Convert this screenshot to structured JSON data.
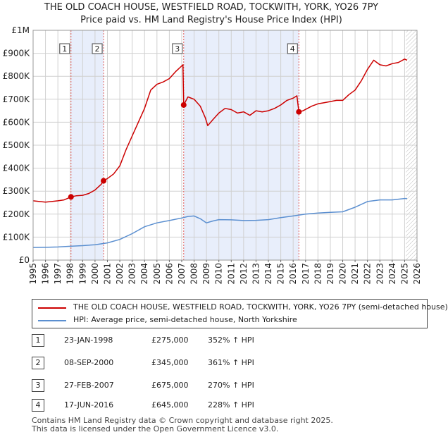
{
  "title_line1": "THE OLD COACH HOUSE, WESTFIELD ROAD, TOCKWITH, YORK, YO26 7PY",
  "title_line2": "Price paid vs. HM Land Registry's House Price Index (HPI)",
  "legend": {
    "property_label": "THE OLD COACH HOUSE, WESTFIELD ROAD, TOCKWITH, YORK, YO26 7PY (semi-detached house)",
    "hpi_label": "HPI: Average price, semi-detached house, North Yorkshire"
  },
  "transactions": [
    {
      "num": "1",
      "date": "23-JAN-1998",
      "price": "£275,000",
      "hpi": "352% ↑ HPI"
    },
    {
      "num": "2",
      "date": "08-SEP-2000",
      "price": "£345,000",
      "hpi": "361% ↑ HPI"
    },
    {
      "num": "3",
      "date": "27-FEB-2007",
      "price": "£675,000",
      "hpi": "270% ↑ HPI"
    },
    {
      "num": "4",
      "date": "17-JUN-2016",
      "price": "£645,000",
      "hpi": "228% ↑ HPI"
    }
  ],
  "footer_line1": "Contains HM Land Registry data © Crown copyright and database right 2025.",
  "footer_line2": "This data is licensed under the Open Government Licence v3.0.",
  "colors": {
    "property": "#cc0000",
    "hpi": "#5b8fd0",
    "band": "#e8eefb",
    "grid": "#d0d0d0",
    "marker_line": "#e06060"
  },
  "chart_data": {
    "type": "line",
    "title": "THE OLD COACH HOUSE, WESTFIELD ROAD, TOCKWITH, YORK, YO26 7PY",
    "subtitle": "Price paid vs. HM Land Registry's House Price Index (HPI)",
    "xlim": [
      1995,
      2026
    ],
    "ylim": [
      0,
      1000000
    ],
    "y_ticks": [
      {
        "value": 0,
        "label": "£0"
      },
      {
        "value": 100000,
        "label": "£100K"
      },
      {
        "value": 200000,
        "label": "£200K"
      },
      {
        "value": 300000,
        "label": "£300K"
      },
      {
        "value": 400000,
        "label": "£400K"
      },
      {
        "value": 500000,
        "label": "£500K"
      },
      {
        "value": 600000,
        "label": "£600K"
      },
      {
        "value": 700000,
        "label": "£700K"
      },
      {
        "value": 800000,
        "label": "£800K"
      },
      {
        "value": 900000,
        "label": "£900K"
      },
      {
        "value": 1000000,
        "label": "£1M"
      }
    ],
    "x_ticks": [
      "1995",
      "1996",
      "1997",
      "1998",
      "1999",
      "2000",
      "2001",
      "2002",
      "2003",
      "2004",
      "2005",
      "2006",
      "2007",
      "2008",
      "2009",
      "2010",
      "2011",
      "2012",
      "2013",
      "2014",
      "2015",
      "2016",
      "2017",
      "2018",
      "2019",
      "2020",
      "2021",
      "2022",
      "2023",
      "2024",
      "2025",
      "2026"
    ],
    "grid": true,
    "hatched_after": 2025.1,
    "sales": [
      {
        "label": "1",
        "x": 1998.06,
        "y": 275000
      },
      {
        "label": "2",
        "x": 2000.69,
        "y": 345000
      },
      {
        "label": "3",
        "x": 2007.16,
        "y": 675000
      },
      {
        "label": "4",
        "x": 2016.46,
        "y": 645000
      }
    ],
    "shaded_ranges": [
      [
        1998.06,
        2000.69
      ],
      [
        2007.16,
        2016.46
      ]
    ],
    "series": [
      {
        "name": "THE OLD COACH HOUSE, WESTFIELD ROAD, TOCKWITH, YORK, YO26 7PY (semi-detached house)",
        "points": [
          [
            1995.0,
            258000
          ],
          [
            1995.5,
            255000
          ],
          [
            1996.0,
            252000
          ],
          [
            1996.5,
            255000
          ],
          [
            1997.0,
            258000
          ],
          [
            1997.5,
            262000
          ],
          [
            1998.06,
            275000
          ],
          [
            1998.5,
            280000
          ],
          [
            1999.0,
            282000
          ],
          [
            1999.5,
            290000
          ],
          [
            2000.0,
            305000
          ],
          [
            2000.5,
            330000
          ],
          [
            2000.69,
            345000
          ],
          [
            2001.0,
            355000
          ],
          [
            2001.5,
            375000
          ],
          [
            2002.0,
            410000
          ],
          [
            2002.5,
            480000
          ],
          [
            2003.0,
            540000
          ],
          [
            2003.5,
            600000
          ],
          [
            2004.0,
            660000
          ],
          [
            2004.5,
            740000
          ],
          [
            2005.0,
            765000
          ],
          [
            2005.5,
            775000
          ],
          [
            2006.0,
            790000
          ],
          [
            2006.5,
            820000
          ],
          [
            2007.0,
            845000
          ],
          [
            2007.1,
            850000
          ],
          [
            2007.16,
            675000
          ],
          [
            2007.5,
            710000
          ],
          [
            2008.0,
            700000
          ],
          [
            2008.5,
            670000
          ],
          [
            2008.9,
            620000
          ],
          [
            2009.1,
            585000
          ],
          [
            2009.5,
            610000
          ],
          [
            2010.0,
            640000
          ],
          [
            2010.5,
            660000
          ],
          [
            2011.0,
            655000
          ],
          [
            2011.5,
            640000
          ],
          [
            2012.0,
            645000
          ],
          [
            2012.5,
            630000
          ],
          [
            2013.0,
            650000
          ],
          [
            2013.5,
            645000
          ],
          [
            2014.0,
            650000
          ],
          [
            2014.5,
            660000
          ],
          [
            2015.0,
            675000
          ],
          [
            2015.5,
            695000
          ],
          [
            2016.0,
            705000
          ],
          [
            2016.3,
            715000
          ],
          [
            2016.46,
            645000
          ],
          [
            2016.8,
            650000
          ],
          [
            2017.5,
            670000
          ],
          [
            2018.0,
            680000
          ],
          [
            2018.5,
            685000
          ],
          [
            2019.0,
            690000
          ],
          [
            2019.5,
            695000
          ],
          [
            2020.0,
            695000
          ],
          [
            2020.5,
            720000
          ],
          [
            2021.0,
            740000
          ],
          [
            2021.5,
            780000
          ],
          [
            2022.0,
            830000
          ],
          [
            2022.5,
            870000
          ],
          [
            2023.0,
            850000
          ],
          [
            2023.5,
            845000
          ],
          [
            2024.0,
            855000
          ],
          [
            2024.5,
            860000
          ],
          [
            2025.0,
            875000
          ],
          [
            2025.2,
            870000
          ]
        ]
      },
      {
        "name": "HPI: Average price, semi-detached house, North Yorkshire",
        "points": [
          [
            1995.0,
            55000
          ],
          [
            1996.0,
            55500
          ],
          [
            1997.0,
            57000
          ],
          [
            1998.0,
            60000
          ],
          [
            1999.0,
            63000
          ],
          [
            2000.0,
            67000
          ],
          [
            2001.0,
            75000
          ],
          [
            2002.0,
            90000
          ],
          [
            2003.0,
            115000
          ],
          [
            2004.0,
            145000
          ],
          [
            2005.0,
            162000
          ],
          [
            2006.0,
            172000
          ],
          [
            2007.0,
            183000
          ],
          [
            2007.5,
            190000
          ],
          [
            2008.0,
            192000
          ],
          [
            2008.5,
            180000
          ],
          [
            2009.0,
            162000
          ],
          [
            2009.5,
            170000
          ],
          [
            2010.0,
            176000
          ],
          [
            2011.0,
            175000
          ],
          [
            2012.0,
            172000
          ],
          [
            2013.0,
            173000
          ],
          [
            2014.0,
            176000
          ],
          [
            2015.0,
            185000
          ],
          [
            2016.0,
            192000
          ],
          [
            2017.0,
            200000
          ],
          [
            2018.0,
            205000
          ],
          [
            2019.0,
            208000
          ],
          [
            2020.0,
            210000
          ],
          [
            2021.0,
            230000
          ],
          [
            2022.0,
            255000
          ],
          [
            2023.0,
            262000
          ],
          [
            2024.0,
            262000
          ],
          [
            2025.0,
            268000
          ],
          [
            2025.2,
            268000
          ]
        ]
      }
    ]
  }
}
